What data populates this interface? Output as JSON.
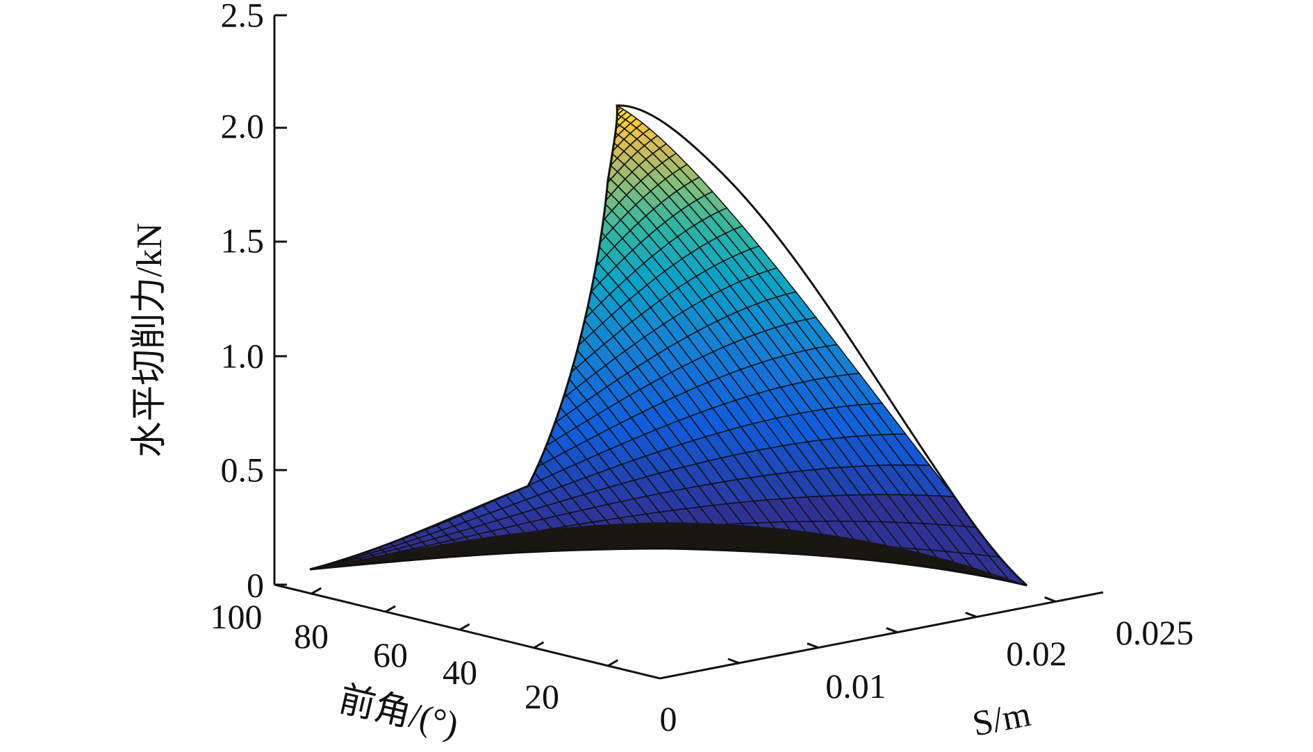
{
  "chart_data": {
    "type": "surface",
    "title": "",
    "zlabel": "水平切削力/kN",
    "xlabel": "S/m",
    "ylabel": "前角/(°)",
    "zticks": [
      "0",
      "0.5",
      "1.0",
      "1.5",
      "2.0",
      "2.5"
    ],
    "zlim": [
      0,
      2.5
    ],
    "xticks": [
      "0",
      "0.01",
      "0.02",
      "0.025"
    ],
    "xlim": [
      0,
      0.025
    ],
    "yticks": [
      "20",
      "40",
      "60",
      "80",
      "100"
    ],
    "ylim": [
      0,
      100
    ],
    "colormap": "parula",
    "colormap_stops": [
      "#352a87",
      "#0f5cdd",
      "#1481d6",
      "#06a4ca",
      "#2eb7a4",
      "#87bf77",
      "#d1bb59",
      "#fec832",
      "#f9fb0e"
    ],
    "grid_color": "#111111",
    "surface_corners": [
      {
        "s": 0.022,
        "angle": 10,
        "force": 0
      },
      {
        "s": 0.022,
        "angle": 70,
        "force": 2.1
      },
      {
        "s": 0,
        "angle": 90,
        "force": 0
      }
    ]
  }
}
